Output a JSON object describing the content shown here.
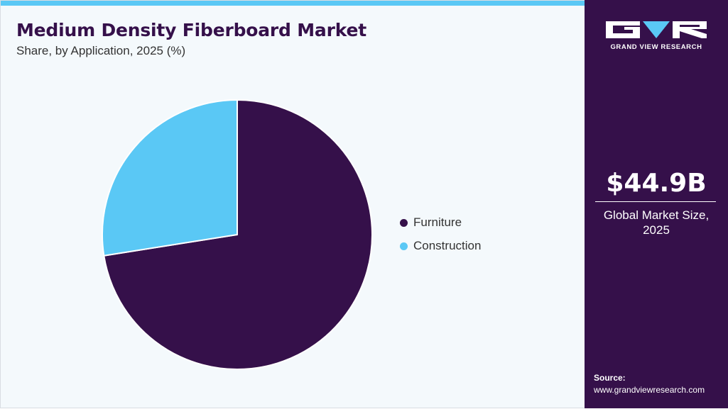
{
  "header": {
    "title": "Medium Density Fiberboard Market",
    "subtitle": "Share, by Application, 2025 (%)"
  },
  "chart_data": {
    "type": "pie",
    "categories": [
      "Furniture",
      "Construction"
    ],
    "values": [
      72.5,
      27.5
    ],
    "colors": [
      "#35104a",
      "#5ac8f5"
    ],
    "legend_placement": "right",
    "grid": false
  },
  "side_panel": {
    "logo_text": "GRAND VIEW RESEARCH",
    "market_value": "$44.9B",
    "market_caption_line1": "Global Market Size,",
    "market_caption_line2": "2025",
    "source_label": "Source:",
    "source_url": "www.grandviewresearch.com"
  },
  "colors": {
    "brand_dark": "#35104a",
    "accent": "#5ac8f5",
    "background": "#f4f9fc"
  }
}
